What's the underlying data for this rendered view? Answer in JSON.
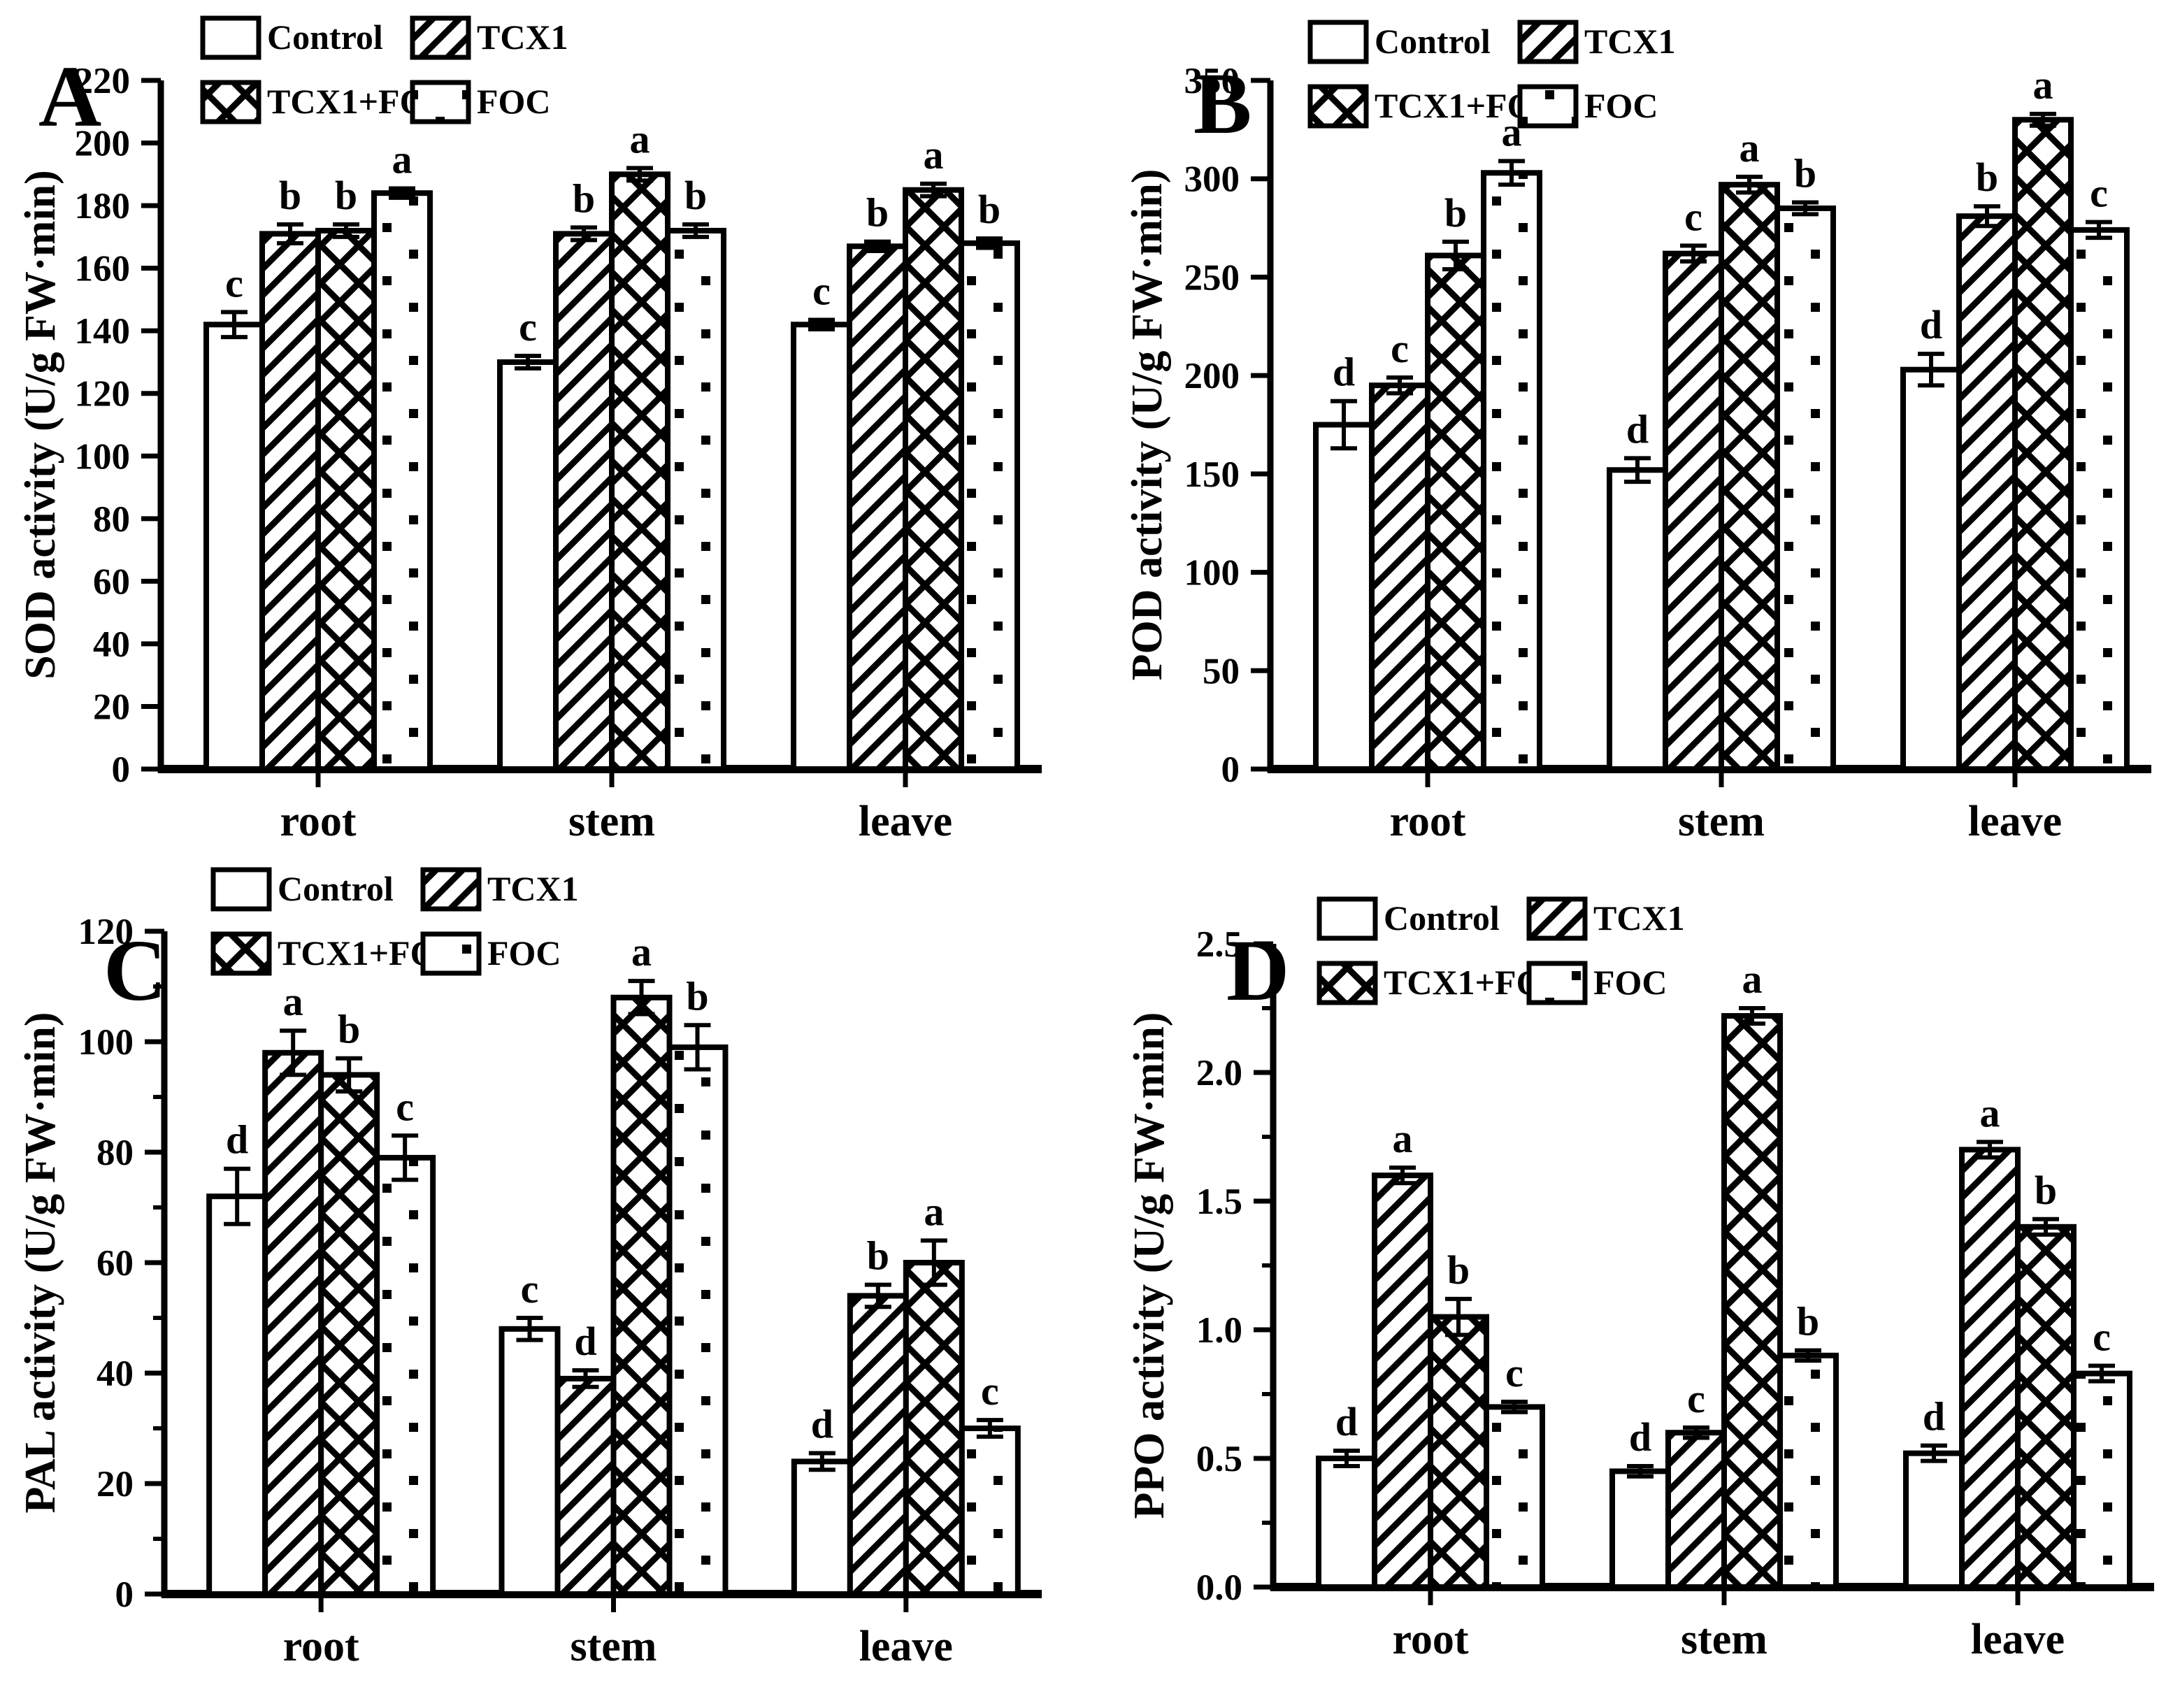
{
  "figure": {
    "background": "#ffffff",
    "ink_color": "#000000",
    "tissue_axis_note": "grouped bars by plant tissue",
    "treatments": [
      "Control",
      "TCX1",
      "TCX1+FOC",
      "FOC"
    ]
  },
  "chart_data": [
    {
      "type": "bar",
      "panel_label": "A",
      "ylabel": "SOD activity (U/g FW·min)",
      "ylim": [
        0,
        220
      ],
      "ytick_step": 20,
      "minor_step": null,
      "tick_format": "int",
      "grid": false,
      "legend_position": "top-inside",
      "categories": [
        "root",
        "stem",
        "leave"
      ],
      "series": [
        {
          "name": "Control",
          "pattern": "plain",
          "values": [
            142,
            130,
            142
          ],
          "errors": [
            4,
            2,
            1.5
          ],
          "letters": [
            "c",
            "c",
            "c"
          ]
        },
        {
          "name": "TCX1",
          "pattern": "diag",
          "values": [
            171,
            171,
            167
          ],
          "errors": [
            3,
            2,
            1.5
          ],
          "letters": [
            "b",
            "b",
            "b"
          ]
        },
        {
          "name": "TCX1+FOC",
          "pattern": "cross",
          "values": [
            172,
            190,
            185
          ],
          "errors": [
            2,
            2,
            2
          ],
          "letters": [
            "b",
            "a",
            "a"
          ]
        },
        {
          "name": "FOC",
          "pattern": "dots",
          "values": [
            184,
            172,
            168
          ],
          "errors": [
            1.5,
            2,
            1.5
          ],
          "letters": [
            "a",
            "b",
            "b"
          ]
        }
      ]
    },
    {
      "type": "bar",
      "panel_label": "B",
      "ylabel": "POD activity (U/g FW·min)",
      "ylim": [
        0,
        350
      ],
      "ytick_step": 50,
      "minor_step": null,
      "tick_format": "int",
      "grid": false,
      "legend_position": "top-inside",
      "categories": [
        "root",
        "stem",
        "leave"
      ],
      "series": [
        {
          "name": "Control",
          "pattern": "plain",
          "values": [
            175,
            152,
            203
          ],
          "errors": [
            12,
            6,
            8
          ],
          "letters": [
            "d",
            "d",
            "d"
          ]
        },
        {
          "name": "TCX1",
          "pattern": "diag",
          "values": [
            195,
            262,
            281
          ],
          "errors": [
            4,
            4,
            5
          ],
          "letters": [
            "c",
            "c",
            "b"
          ]
        },
        {
          "name": "TCX1+FOC",
          "pattern": "cross",
          "values": [
            261,
            297,
            330
          ],
          "errors": [
            7,
            4,
            3
          ],
          "letters": [
            "b",
            "a",
            "a"
          ]
        },
        {
          "name": "FOC",
          "pattern": "dots",
          "values": [
            303,
            285,
            274
          ],
          "errors": [
            6,
            3,
            4
          ],
          "letters": [
            "a",
            "b",
            "c"
          ]
        }
      ]
    },
    {
      "type": "bar",
      "panel_label": "C",
      "ylabel": "PAL activity (U/g FW·min)",
      "ylim": [
        0,
        120
      ],
      "ytick_step": 20,
      "minor_step": 10,
      "tick_format": "int",
      "grid": false,
      "legend_position": "top-inside",
      "categories": [
        "root",
        "stem",
        "leave"
      ],
      "series": [
        {
          "name": "Control",
          "pattern": "plain",
          "values": [
            72,
            48,
            24
          ],
          "errors": [
            5,
            2,
            1.5
          ],
          "letters": [
            "d",
            "c",
            "d"
          ]
        },
        {
          "name": "TCX1",
          "pattern": "diag",
          "values": [
            98,
            39,
            54
          ],
          "errors": [
            4,
            1.5,
            2
          ],
          "letters": [
            "a",
            "d",
            "b"
          ]
        },
        {
          "name": "TCX1+FOC",
          "pattern": "cross",
          "values": [
            94,
            108,
            60
          ],
          "errors": [
            3,
            3,
            4
          ],
          "letters": [
            "b",
            "a",
            "a"
          ]
        },
        {
          "name": "FOC",
          "pattern": "dots",
          "values": [
            79,
            99,
            30
          ],
          "errors": [
            4,
            4,
            1.5
          ],
          "letters": [
            "c",
            "b",
            "c"
          ]
        }
      ]
    },
    {
      "type": "bar",
      "panel_label": "D",
      "ylabel": "PPO activity (U/g FW·min)",
      "ylim": [
        0,
        2.5
      ],
      "ytick_step": 0.5,
      "minor_step": 0.25,
      "tick_format": "one_decimal",
      "grid": false,
      "legend_position": "top-inside",
      "categories": [
        "root",
        "stem",
        "leave"
      ],
      "series": [
        {
          "name": "Control",
          "pattern": "plain",
          "values": [
            0.5,
            0.45,
            0.52
          ],
          "errors": [
            0.03,
            0.02,
            0.03
          ],
          "letters": [
            "d",
            "d",
            "d"
          ]
        },
        {
          "name": "TCX1",
          "pattern": "diag",
          "values": [
            1.6,
            0.6,
            1.7
          ],
          "errors": [
            0.03,
            0.02,
            0.03
          ],
          "letters": [
            "a",
            "c",
            "a"
          ]
        },
        {
          "name": "TCX1+FOC",
          "pattern": "cross",
          "values": [
            1.05,
            2.22,
            1.4
          ],
          "errors": [
            0.07,
            0.03,
            0.03
          ],
          "letters": [
            "b",
            "a",
            "b"
          ]
        },
        {
          "name": "FOC",
          "pattern": "dots",
          "values": [
            0.7,
            0.9,
            0.83
          ],
          "errors": [
            0.02,
            0.02,
            0.03
          ],
          "letters": [
            "c",
            "b",
            "c"
          ]
        }
      ]
    }
  ]
}
